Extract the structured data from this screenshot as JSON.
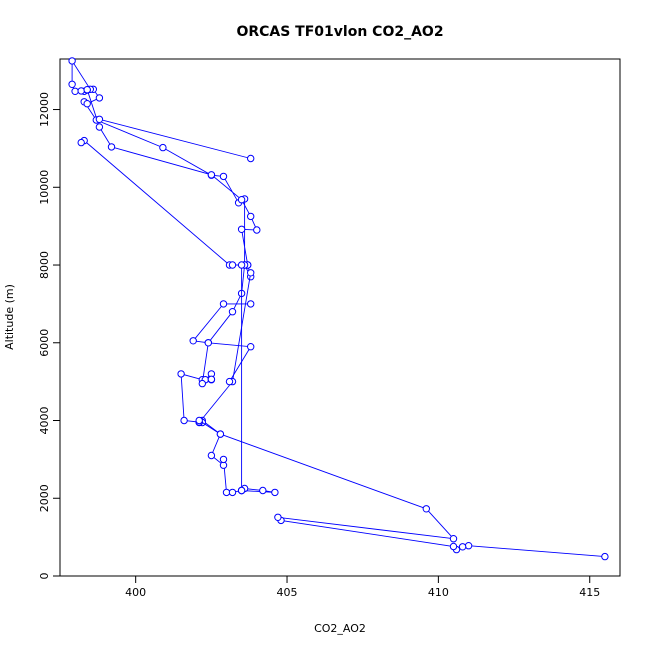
{
  "chart_data": {
    "type": "line",
    "title": "ORCAS TF01vlon CO2_AO2",
    "xlabel": "CO2_AO2",
    "ylabel": "Altitude (m)",
    "xlim": [
      397.5,
      416.0
    ],
    "ylim": [
      0,
      13300
    ],
    "xticks": [
      400,
      405,
      410,
      415
    ],
    "yticks": [
      0,
      2000,
      4000,
      6000,
      8000,
      10000,
      12000
    ],
    "grid": false,
    "markers": "open-circle",
    "colors": {
      "series": "#0000ff",
      "axes": "#000000"
    },
    "series": [
      {
        "points": [
          [
            415.5,
            500
          ],
          [
            411.0,
            780
          ],
          [
            410.8,
            750
          ],
          [
            410.6,
            680
          ],
          [
            410.5,
            760
          ],
          [
            404.8,
            1430
          ],
          [
            404.7,
            1510
          ],
          [
            410.5,
            960
          ],
          [
            409.6,
            1730
          ],
          [
            402.8,
            3650
          ],
          [
            402.2,
            4000
          ],
          [
            402.2,
            3950
          ],
          [
            401.6,
            4000
          ],
          [
            401.5,
            5200
          ],
          [
            402.2,
            5050
          ],
          [
            402.3,
            5050
          ],
          [
            402.5,
            5200
          ],
          [
            402.5,
            5050
          ],
          [
            402.5,
            5060
          ],
          [
            402.2,
            4950
          ],
          [
            402.4,
            6000
          ],
          [
            403.2,
            6800
          ],
          [
            403.5,
            7270
          ],
          [
            403.6,
            8000
          ],
          [
            403.6,
            8000
          ],
          [
            403.6,
            9700
          ],
          [
            403.4,
            9600
          ],
          [
            402.9,
            10280
          ],
          [
            402.5,
            10310
          ],
          [
            400.9,
            11020
          ],
          [
            398.7,
            11730
          ],
          [
            398.3,
            12200
          ],
          [
            398.4,
            12150
          ],
          [
            398.8,
            12300
          ],
          [
            398.6,
            12520
          ],
          [
            398.3,
            12470
          ],
          [
            398.0,
            12470
          ],
          [
            397.9,
            12650
          ],
          [
            397.9,
            13250
          ],
          [
            398.5,
            12520
          ],
          [
            398.4,
            12500
          ],
          [
            398.2,
            12480
          ],
          [
            398.4,
            12510
          ],
          [
            398.8,
            11550
          ],
          [
            399.2,
            11040
          ],
          [
            402.5,
            10320
          ],
          [
            403.5,
            9680
          ],
          [
            403.8,
            9250
          ],
          [
            404.0,
            8900
          ],
          [
            403.5,
            8920
          ],
          [
            403.7,
            8000
          ],
          [
            403.7,
            8000
          ],
          [
            403.8,
            7700
          ],
          [
            403.6,
            8000
          ],
          [
            403.1,
            8000
          ],
          [
            398.3,
            11200
          ],
          [
            398.2,
            11150
          ]
        ]
      },
      {
        "points": [
          [
            403.8,
            10740
          ],
          [
            398.8,
            11750
          ]
        ]
      },
      {
        "points": [
          [
            403.8,
            7800
          ],
          [
            403.2,
            5000
          ],
          [
            402.1,
            3950
          ],
          [
            402.1,
            3960
          ],
          [
            402.1,
            4000
          ],
          [
            402.8,
            3650
          ],
          [
            402.5,
            3100
          ],
          [
            402.9,
            2850
          ],
          [
            402.9,
            3000
          ],
          [
            403.0,
            2150
          ],
          [
            403.2,
            2150
          ],
          [
            403.5,
            2200
          ],
          [
            403.6,
            2250
          ],
          [
            404.2,
            2200
          ],
          [
            404.6,
            2150
          ],
          [
            403.5,
            2200
          ]
        ]
      },
      {
        "points": [
          [
            403.5,
            2200
          ],
          [
            403.5,
            8000
          ],
          [
            403.2,
            8000
          ]
        ]
      },
      {
        "points": [
          [
            403.8,
            7000
          ],
          [
            402.9,
            7000
          ],
          [
            401.9,
            6050
          ],
          [
            402.4,
            6000
          ],
          [
            403.8,
            5900
          ],
          [
            403.1,
            5000
          ]
        ]
      }
    ]
  }
}
